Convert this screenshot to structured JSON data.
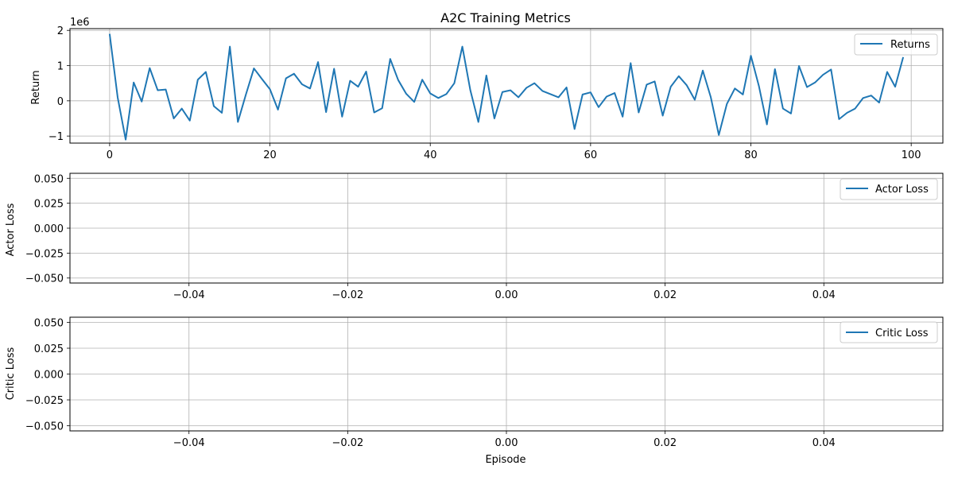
{
  "chart_data": [
    {
      "type": "line",
      "title": "A2C Training Metrics",
      "xlabel": "",
      "ylabel": "Return",
      "offset_text": "1e6",
      "scale": 1000000,
      "xlim": [
        -4.95,
        103.95
      ],
      "ylim": [
        -1.2,
        2.05
      ],
      "xticks": [
        0,
        20,
        40,
        60,
        80,
        100
      ],
      "yticks": [
        -1,
        0,
        1,
        2
      ],
      "xtick_labels": [
        "0",
        "20",
        "40",
        "60",
        "80",
        "100"
      ],
      "ytick_labels": [
        "−1",
        "0",
        "1",
        "2"
      ],
      "grid": true,
      "legend_position": "upper right",
      "series": [
        {
          "name": "Returns",
          "color": "#1f77b4",
          "x": [
            0,
            1,
            2,
            3,
            4,
            5,
            6,
            7,
            8,
            9,
            10,
            11,
            12,
            13,
            14,
            15,
            16,
            17,
            18,
            19,
            20,
            21,
            22,
            23,
            24,
            25,
            26,
            27,
            28,
            29,
            30,
            31,
            32,
            33,
            34,
            35,
            36,
            37,
            38,
            39,
            40,
            41,
            42,
            43,
            44,
            45,
            46,
            47,
            48,
            49,
            50,
            51,
            52,
            53,
            54,
            55,
            56,
            57,
            58,
            59,
            60,
            61,
            62,
            63,
            64,
            65,
            66,
            67,
            68,
            69,
            70,
            71,
            72,
            73,
            74,
            75,
            76,
            77,
            78,
            79,
            80,
            81,
            82,
            83,
            84,
            85,
            86,
            87,
            88,
            89,
            90,
            91,
            92,
            93,
            94,
            95,
            96,
            97,
            98,
            99
          ],
          "values": [
            1900000,
            100000,
            -1100000,
            520000,
            -20000,
            930000,
            300000,
            320000,
            -500000,
            -220000,
            -560000,
            600000,
            820000,
            -150000,
            -340000,
            1540000,
            -600000,
            180000,
            920000,
            620000,
            330000,
            -250000,
            640000,
            770000,
            470000,
            350000,
            1100000,
            -320000,
            910000,
            -450000,
            570000,
            400000,
            830000,
            -330000,
            -210000,
            1190000,
            590000,
            200000,
            -30000,
            600000,
            210000,
            80000,
            190000,
            500000,
            1540000,
            300000,
            -600000,
            720000,
            -500000,
            250000,
            300000,
            100000,
            370000,
            500000,
            280000,
            190000,
            100000,
            380000,
            -800000,
            180000,
            240000,
            -180000,
            120000,
            220000,
            -450000,
            1070000,
            -330000,
            460000,
            550000,
            -420000,
            400000,
            700000,
            440000,
            30000,
            860000,
            100000,
            -970000,
            -90000,
            350000,
            180000,
            1280000,
            420000,
            -670000,
            900000,
            -220000,
            -360000,
            990000,
            390000,
            520000,
            740000,
            890000,
            -520000,
            -340000,
            -220000,
            80000,
            150000,
            -50000,
            820000,
            400000,
            1240000
          ]
        }
      ]
    },
    {
      "type": "line",
      "xlabel": "",
      "ylabel": "Actor Loss",
      "xlim": [
        -0.055,
        0.055
      ],
      "ylim": [
        -0.055,
        0.055
      ],
      "xticks": [
        -0.04,
        -0.02,
        0.0,
        0.02,
        0.04
      ],
      "yticks": [
        -0.05,
        -0.025,
        0.0,
        0.025,
        0.05
      ],
      "xtick_labels": [
        "−0.04",
        "−0.02",
        "0.00",
        "0.02",
        "0.04"
      ],
      "ytick_labels": [
        "−0.050",
        "−0.025",
        "0.000",
        "0.025",
        "0.050"
      ],
      "grid": true,
      "legend_position": "upper right",
      "series": [
        {
          "name": "Actor Loss",
          "color": "#1f77b4",
          "x": [],
          "values": []
        }
      ]
    },
    {
      "type": "line",
      "xlabel": "Episode",
      "ylabel": "Critic Loss",
      "xlim": [
        -0.055,
        0.055
      ],
      "ylim": [
        -0.055,
        0.055
      ],
      "xticks": [
        -0.04,
        -0.02,
        0.0,
        0.02,
        0.04
      ],
      "yticks": [
        -0.05,
        -0.025,
        0.0,
        0.025,
        0.05
      ],
      "xtick_labels": [
        "−0.04",
        "−0.02",
        "0.00",
        "0.02",
        "0.04"
      ],
      "ytick_labels": [
        "−0.050",
        "−0.025",
        "0.000",
        "0.025",
        "0.050"
      ],
      "grid": true,
      "legend_position": "upper right",
      "series": [
        {
          "name": "Critic Loss",
          "color": "#1f77b4",
          "x": [],
          "values": []
        }
      ]
    }
  ]
}
